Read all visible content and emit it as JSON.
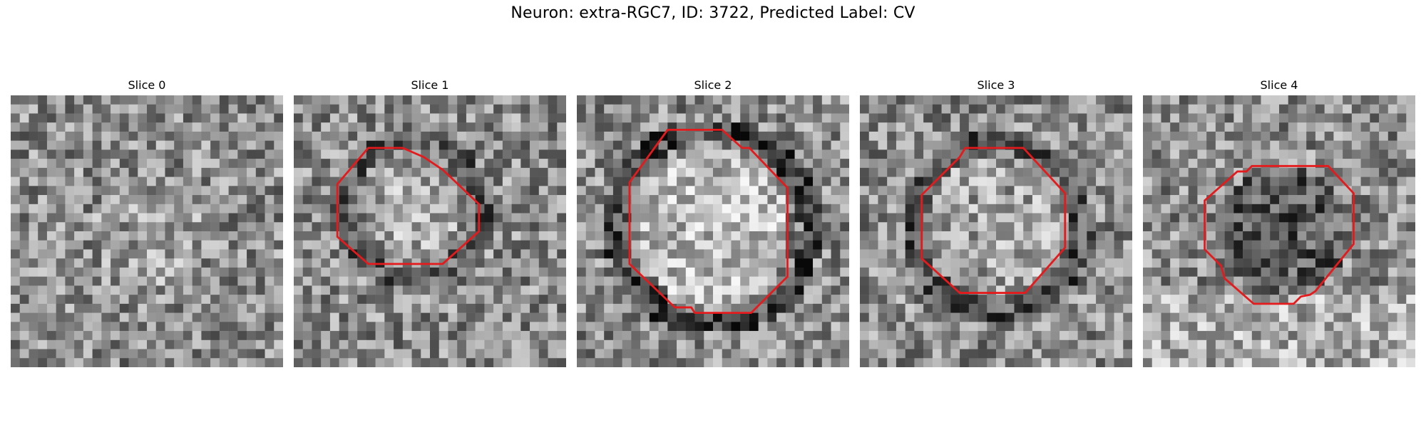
{
  "figure": {
    "title": "Neuron: extra-RGC7, ID: 3722, Predicted Label: CV"
  },
  "slices": [
    {
      "label": "Slice 0",
      "has_outline": false
    },
    {
      "label": "Slice 1",
      "has_outline": true
    },
    {
      "label": "Slice 2",
      "has_outline": true
    },
    {
      "label": "Slice 3",
      "has_outline": true
    },
    {
      "label": "Slice 4",
      "has_outline": true
    }
  ],
  "colors": {
    "outline": "#e41a1c",
    "background": "#ffffff"
  },
  "image_style": "grayscale pixelated microscopy crop with red polygon ROI outline"
}
